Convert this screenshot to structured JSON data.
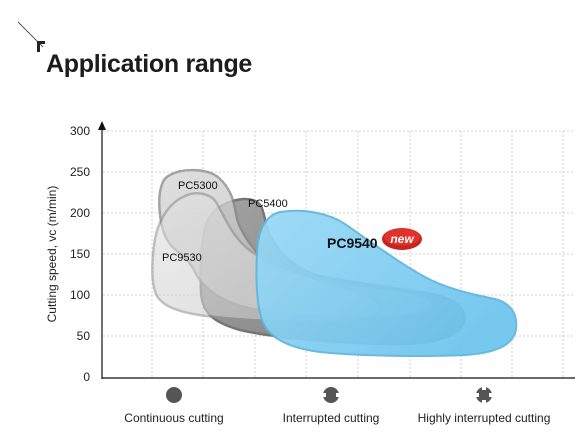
{
  "page": {
    "title": "Application range"
  },
  "chart_data": {
    "type": "area",
    "title": "Application range",
    "ylabel": "Cutting speed, vc (m/min)",
    "xlabel": "",
    "ylim": [
      0,
      300
    ],
    "yticks": [
      0,
      50,
      100,
      150,
      200,
      250,
      300
    ],
    "categories": [
      "Continuous cutting",
      "Interrupted cutting",
      "Highly interrupted cutting"
    ],
    "category_icons": [
      "continuous-cutting-icon",
      "interrupted-cutting-icon",
      "highly-interrupted-cutting-icon"
    ],
    "grid": true,
    "series": [
      {
        "name": "PC5300",
        "color": "#c9c9c9",
        "vc_min": 60,
        "vc_max": 250,
        "applicable_range": "Continuous to Interrupted cutting"
      },
      {
        "name": "PC9530",
        "color": "#d4d4d4",
        "vc_min": 75,
        "vc_max": 220,
        "applicable_range": "Continuous to Interrupted cutting"
      },
      {
        "name": "PC5400",
        "color": "#8f8f8f",
        "vc_min": 45,
        "vc_max": 215,
        "applicable_range": "Continuous to Highly interrupted cutting"
      },
      {
        "name": "PC9540",
        "color": "#8fd3f2",
        "vc_min": 25,
        "vc_max": 200,
        "applicable_range": "Interrupted to Highly interrupted cutting"
      }
    ],
    "badge": {
      "text": "new",
      "color": "#d9201f"
    }
  }
}
